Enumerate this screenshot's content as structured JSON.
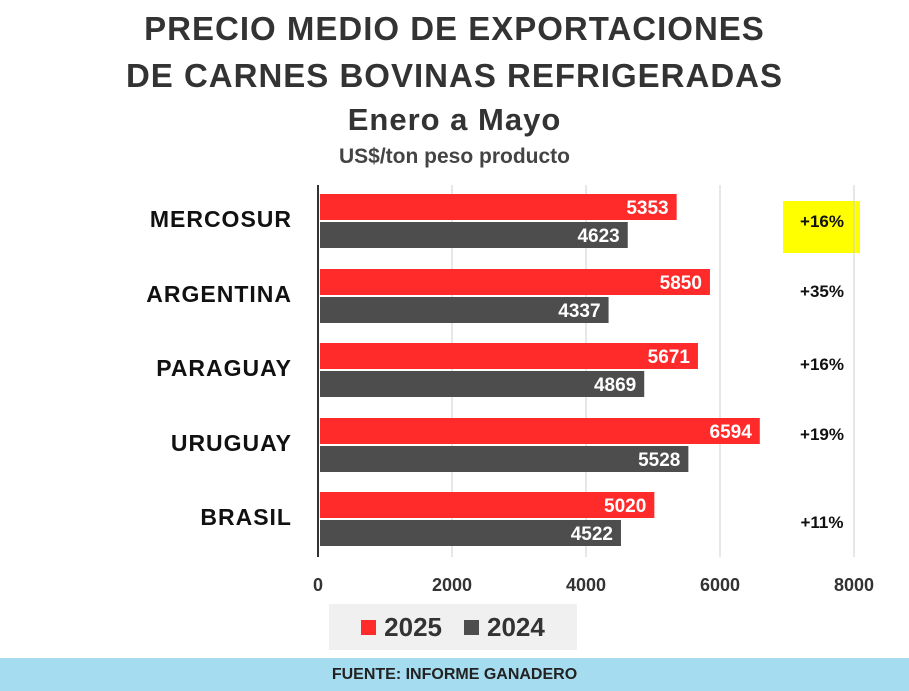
{
  "header": {
    "title_line1": "PRECIO MEDIO DE EXPORTACIONES",
    "title_line2": "DE CARNES BOVINAS  REFRIGERADAS",
    "subtitle": "Enero a Mayo",
    "units": "US$/ton peso producto"
  },
  "chart_data": {
    "type": "bar",
    "orientation": "horizontal",
    "categories": [
      "MERCOSUR",
      "ARGENTINA",
      "PARAGUAY",
      "URUGUAY",
      "BRASIL"
    ],
    "series": [
      {
        "name": "2025",
        "color": "#ff2a2a",
        "values": [
          5353,
          5850,
          5671,
          6594,
          5020
        ]
      },
      {
        "name": "2024",
        "color": "#4d4d4d",
        "values": [
          4623,
          4337,
          4869,
          5528,
          4522
        ]
      }
    ],
    "change_labels": [
      "+16%",
      "+35%",
      "+16%",
      "+19%",
      "+11%"
    ],
    "highlighted_category": "MERCOSUR",
    "highlight_color": "#ffff00",
    "xlim": [
      0,
      8000
    ],
    "xticks": [
      0,
      2000,
      4000,
      6000,
      8000
    ],
    "grid": "vertical",
    "legend_placement": "bottom"
  },
  "footer": {
    "source": "FUENTE: INFORME GANADERO"
  }
}
